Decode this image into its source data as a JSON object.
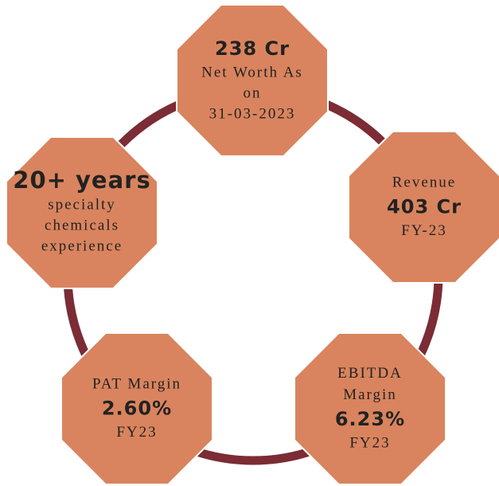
{
  "nodes": [
    {
      "above": [],
      "value": "238 Cr",
      "below": [
        "Net Worth  As",
        "on",
        "31-03-2023"
      ]
    },
    {
      "above": [
        "Revenue"
      ],
      "value": "403 Cr",
      "below": [
        "FY-23"
      ]
    },
    {
      "above": [
        "EBITDA",
        "Margin"
      ],
      "value": "6.23%",
      "below": [
        "FY23"
      ]
    },
    {
      "above": [
        "PAT Margin"
      ],
      "value": "2.60%",
      "below": [
        "FY23"
      ]
    },
    {
      "above": [],
      "value": "20+ years",
      "below": [
        "specialty",
        "chemicals",
        "experience"
      ]
    }
  ]
}
